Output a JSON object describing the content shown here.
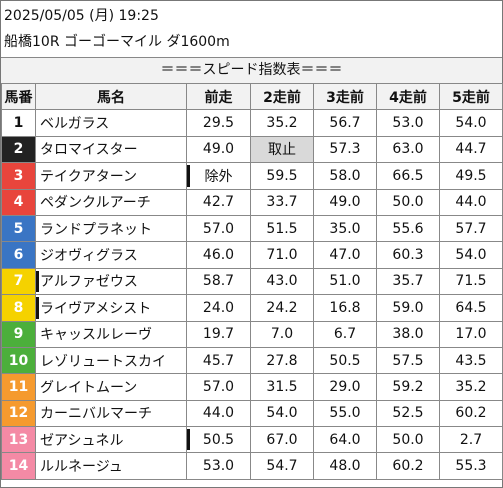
{
  "header": {
    "date_line": "2025/05/05 (月) 19:25",
    "race_line": "船橋10R ゴーゴーマイル ダ1600m",
    "caption": "＝＝＝スピード指数表＝＝＝"
  },
  "table": {
    "columns": [
      "馬番",
      "馬名",
      "前走",
      "2走前",
      "3走前",
      "4走前",
      "5走前"
    ],
    "rows": [
      {
        "num": "1",
        "name": "ベルガラス",
        "v1": "29.5",
        "v2": "35.2",
        "v3": "56.7",
        "v4": "53.0",
        "v5": "54.0"
      },
      {
        "num": "2",
        "name": "タロマイスター",
        "v1": "49.0",
        "v2": "取止",
        "v3": "57.3",
        "v4": "63.0",
        "v5": "44.7"
      },
      {
        "num": "3",
        "name": "テイクアターン",
        "v1": "除外",
        "v2": "59.5",
        "v3": "58.0",
        "v4": "66.5",
        "v5": "49.5"
      },
      {
        "num": "4",
        "name": "ペダンクルアーチ",
        "v1": "42.7",
        "v2": "33.7",
        "v3": "49.0",
        "v4": "50.0",
        "v5": "44.0"
      },
      {
        "num": "5",
        "name": "ランドプラネット",
        "v1": "57.0",
        "v2": "51.5",
        "v3": "35.0",
        "v4": "55.6",
        "v5": "57.7"
      },
      {
        "num": "6",
        "name": "ジオヴィグラス",
        "v1": "46.0",
        "v2": "71.0",
        "v3": "47.0",
        "v4": "60.3",
        "v5": "54.0"
      },
      {
        "num": "7",
        "name": "アルファゼウス",
        "v1": "58.7",
        "v2": "43.0",
        "v3": "51.0",
        "v4": "35.7",
        "v5": "71.5"
      },
      {
        "num": "8",
        "name": "ライヴアメシスト",
        "v1": "24.0",
        "v2": "24.2",
        "v3": "16.8",
        "v4": "59.0",
        "v5": "64.5"
      },
      {
        "num": "9",
        "name": "キャッスルレーヴ",
        "v1": "19.7",
        "v2": "7.0",
        "v3": "6.7",
        "v4": "38.0",
        "v5": "17.0"
      },
      {
        "num": "10",
        "name": "レゾリュートスカイ",
        "v1": "45.7",
        "v2": "27.8",
        "v3": "50.5",
        "v4": "57.5",
        "v5": "43.5"
      },
      {
        "num": "11",
        "name": "グレイトムーン",
        "v1": "57.0",
        "v2": "31.5",
        "v3": "29.0",
        "v4": "59.2",
        "v5": "35.2"
      },
      {
        "num": "12",
        "name": "カーニバルマーチ",
        "v1": "44.0",
        "v2": "54.0",
        "v3": "55.0",
        "v4": "52.5",
        "v5": "60.2"
      },
      {
        "num": "13",
        "name": "ゼアシュネル",
        "v1": "50.5",
        "v2": "67.0",
        "v3": "64.0",
        "v4": "50.0",
        "v5": "2.7"
      },
      {
        "num": "14",
        "name": "ルルネージュ",
        "v1": "53.0",
        "v2": "54.7",
        "v3": "48.0",
        "v4": "60.2",
        "v5": "55.3"
      }
    ]
  },
  "colors": {
    "frame_1": "#ffffff",
    "frame_2": "#222222",
    "frame_3": "#e8453c",
    "frame_4": "#3a75c4",
    "frame_5": "#f5d200",
    "frame_6": "#4caf3b",
    "frame_7": "#f59a2e",
    "frame_8": "#f48aa5",
    "header_bg": "#f2f2f2",
    "highlight_cell": "#d9d9d9"
  }
}
